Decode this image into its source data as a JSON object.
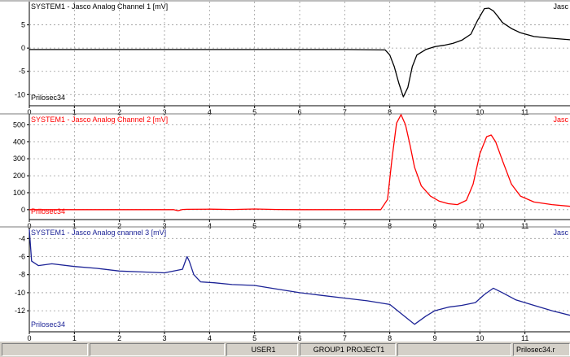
{
  "chart_data": [
    {
      "type": "line",
      "title": "SYSTEM1 - Jasco Analog Channel 1 [mV]",
      "title_right": "Jasc",
      "series_label": "Prilosec34",
      "color": "#000000",
      "x_ticks": [
        0,
        1,
        2,
        3,
        4,
        5,
        6,
        7,
        8,
        9,
        10,
        11
      ],
      "y_ticks": [
        5,
        0,
        -5,
        -10
      ],
      "y_tick_labels": [
        "5",
        "0",
        "-5",
        "-10"
      ],
      "xlim": [
        0,
        12
      ],
      "ylim": [
        -11,
        10
      ],
      "grid": true,
      "series": [
        {
          "name": "Prilosec34",
          "x": [
            0,
            1,
            2,
            3,
            4,
            5,
            6,
            7,
            7.9,
            8.0,
            8.1,
            8.2,
            8.3,
            8.4,
            8.5,
            8.6,
            8.8,
            9.0,
            9.2,
            9.4,
            9.6,
            9.8,
            9.95,
            10.1,
            10.2,
            10.3,
            10.4,
            10.5,
            10.7,
            10.9,
            11.2,
            11.5,
            12
          ],
          "y": [
            -0.3,
            -0.3,
            -0.3,
            -0.3,
            -0.3,
            -0.3,
            -0.3,
            -0.3,
            -0.4,
            -1.5,
            -4,
            -7.5,
            -10.5,
            -8.5,
            -4,
            -1.5,
            -0.3,
            0.3,
            0.6,
            1,
            1.7,
            3,
            6,
            8.5,
            8.6,
            8,
            6.8,
            5.5,
            4.2,
            3.3,
            2.5,
            2.2,
            1.8
          ]
        }
      ]
    },
    {
      "type": "line",
      "title": "SYSTEM1 - Jasco Analog Channel 2 [mV]",
      "title_right": "Jasc",
      "series_label": "Prilosec34",
      "color": "#ff0000",
      "x_ticks": [
        0,
        1,
        2,
        3,
        4,
        5,
        6,
        7,
        8,
        9,
        10,
        11
      ],
      "y_ticks": [
        500,
        400,
        300,
        200,
        100,
        0
      ],
      "y_tick_labels": [
        "500",
        "400",
        "300",
        "200",
        "100",
        "0"
      ],
      "xlim": [
        0,
        12
      ],
      "ylim": [
        -20,
        560
      ],
      "grid": true,
      "series": [
        {
          "name": "Prilosec34",
          "x": [
            0,
            1,
            2,
            3,
            3.2,
            3.3,
            3.4,
            3.5,
            4,
            4.5,
            5,
            5.5,
            6,
            7,
            7.8,
            7.95,
            8.05,
            8.15,
            8.25,
            8.35,
            8.45,
            8.55,
            8.7,
            8.9,
            9.1,
            9.3,
            9.5,
            9.7,
            9.85,
            10.0,
            10.15,
            10.25,
            10.35,
            10.5,
            10.7,
            10.9,
            11.2,
            11.6,
            12
          ],
          "y": [
            0,
            0,
            0,
            0,
            0,
            -6,
            1,
            2,
            3,
            1,
            4,
            1,
            0,
            0,
            0,
            60,
            300,
            510,
            560,
            500,
            380,
            250,
            140,
            80,
            50,
            35,
            30,
            55,
            150,
            330,
            430,
            440,
            400,
            290,
            150,
            80,
            45,
            30,
            20
          ]
        }
      ]
    },
    {
      "type": "line",
      "title": "SYSTEM1 - Jasco Analog cnannel 3 [mV]",
      "title_right": "Jasc",
      "series_label": "Prilosec34",
      "color": "#1c2396",
      "x_ticks": [
        0,
        1,
        2,
        3,
        4,
        5,
        6,
        7,
        8,
        9,
        10,
        11
      ],
      "y_ticks": [
        -4,
        -6,
        -8,
        -10,
        -12
      ],
      "y_tick_labels": [
        "-4",
        "-6",
        "-8",
        "-10",
        "-12"
      ],
      "xlim": [
        0,
        12
      ],
      "ylim": [
        -13.7,
        -2.8
      ],
      "grid": true,
      "series": [
        {
          "name": "Prilosec34",
          "x": [
            0,
            0.05,
            0.2,
            0.5,
            1,
            1.5,
            2,
            2.5,
            3,
            3.4,
            3.5,
            3.55,
            3.65,
            3.8,
            4.1,
            4.5,
            5,
            5.5,
            6,
            6.5,
            7,
            7.5,
            8.0,
            8.3,
            8.55,
            8.8,
            9.0,
            9.3,
            9.6,
            9.9,
            10.1,
            10.3,
            10.5,
            10.8,
            11.2,
            11.6,
            12
          ],
          "y": [
            -3,
            -6.5,
            -7,
            -6.8,
            -7.1,
            -7.3,
            -7.6,
            -7.7,
            -7.8,
            -7.4,
            -6,
            -6.5,
            -8,
            -8.8,
            -8.9,
            -9.1,
            -9.2,
            -9.6,
            -10,
            -10.3,
            -10.6,
            -10.9,
            -11.3,
            -12.5,
            -13.5,
            -12.6,
            -12,
            -11.6,
            -11.4,
            -11.1,
            -10.2,
            -9.5,
            -10,
            -10.8,
            -11.4,
            -12,
            -12.5
          ]
        }
      ]
    }
  ],
  "status_bar": {
    "cells": [
      "",
      "",
      "USER1",
      "GROUP1 PROJECT1",
      "",
      "Prilosec34.r"
    ]
  }
}
